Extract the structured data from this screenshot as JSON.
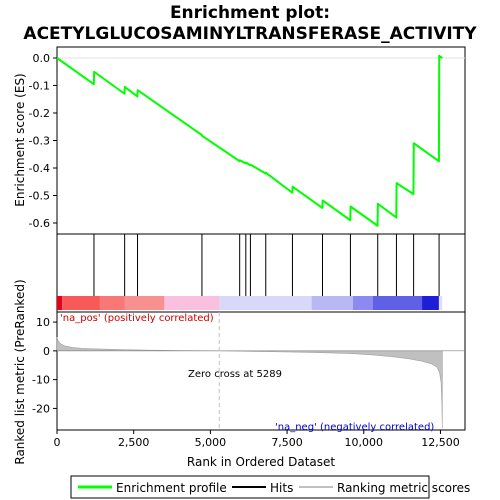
{
  "chart_data": {
    "type": "line",
    "title_line1": "Enrichment plot:",
    "title_line2": "ACETYLGLUCOSAMINYLTRANSFERASE_ACTIVITY",
    "es_panel": {
      "ylabel": "Enrichment score (ES)",
      "ylim": [
        -0.64,
        0.04
      ],
      "yticks": [
        "0.0",
        "-0.1",
        "-0.2",
        "-0.3",
        "-0.4",
        "-0.5",
        "-0.6"
      ],
      "ytick_values": [
        0.0,
        -0.1,
        -0.2,
        -0.3,
        -0.4,
        -0.5,
        -0.6
      ],
      "profile_x": [
        0,
        1200,
        1210,
        2200,
        2210,
        2620,
        2630,
        4720,
        4730,
        5950,
        5960,
        6150,
        6160,
        6300,
        6310,
        6800,
        6810,
        7670,
        7680,
        8650,
        8660,
        9560,
        9570,
        10450,
        10460,
        11060,
        11070,
        11620,
        11630,
        12450,
        12460,
        12560
      ],
      "profile_y": [
        0.0,
        -0.095,
        -0.05,
        -0.13,
        -0.105,
        -0.14,
        -0.117,
        -0.28,
        -0.283,
        -0.375,
        -0.372,
        -0.383,
        -0.38,
        -0.39,
        -0.388,
        -0.42,
        -0.417,
        -0.49,
        -0.468,
        -0.545,
        -0.518,
        -0.59,
        -0.54,
        -0.61,
        -0.53,
        -0.58,
        -0.455,
        -0.495,
        -0.31,
        -0.375,
        0.008,
        0.0
      ]
    },
    "hits_panel": {
      "hits_x": [
        1205,
        2205,
        2625,
        4725,
        5955,
        6155,
        6305,
        6805,
        7675,
        8655,
        9565,
        10455,
        11065,
        11625,
        12455
      ]
    },
    "heat_bar": {
      "segments": [
        {
          "from": 0,
          "to": 170,
          "color": "#e8001a"
        },
        {
          "from": 170,
          "to": 1400,
          "color": "#f85a5a"
        },
        {
          "from": 1400,
          "to": 2200,
          "color": "#f87878"
        },
        {
          "from": 2200,
          "to": 3500,
          "color": "#f89090"
        },
        {
          "from": 3500,
          "to": 5300,
          "color": "#fac0e0"
        },
        {
          "from": 5300,
          "to": 8300,
          "color": "#d8d8fa"
        },
        {
          "from": 8300,
          "to": 9650,
          "color": "#b8b8f5"
        },
        {
          "from": 9650,
          "to": 10300,
          "color": "#8a8af0"
        },
        {
          "from": 10300,
          "to": 11900,
          "color": "#6060e6"
        },
        {
          "from": 11900,
          "to": 12450,
          "color": "#1e1ed6"
        },
        {
          "from": 12450,
          "to": 12560,
          "color": "#e0e0f6"
        }
      ]
    },
    "metric_panel": {
      "ylabel": "Ranked list metric (PreRanked)",
      "ylim": [
        -27.5,
        13.5
      ],
      "yticks": [
        "10",
        "0",
        "-10",
        "-20"
      ],
      "ytick_values": [
        10,
        0,
        -10,
        -20
      ],
      "metric_x": [
        0,
        30,
        100,
        250,
        500,
        800,
        1200,
        2000,
        3000,
        4000,
        5289,
        6500,
        7500,
        8500,
        9500,
        10000,
        10500,
        11000,
        11500,
        11900,
        12200,
        12380,
        12470,
        12520,
        12545,
        12560
      ],
      "metric_y": [
        4.8,
        3.6,
        2.6,
        1.7,
        1.2,
        0.9,
        0.7,
        0.45,
        0.25,
        0.1,
        0.0,
        -0.2,
        -0.4,
        -0.6,
        -0.9,
        -1.2,
        -1.6,
        -2.1,
        -2.8,
        -3.6,
        -4.5,
        -5.6,
        -7.5,
        -11.0,
        -18.0,
        -27.0
      ],
      "zero_cross": 5289,
      "zero_cross_label": "Zero cross at 5289",
      "pos_label": "'na_pos' (positively correlated)",
      "neg_label": "'na_neg' (negatively correlated)"
    },
    "x_axis": {
      "xlabel": "Rank in Ordered Dataset",
      "xlim": [
        0,
        13300
      ],
      "xticks": [
        "0",
        "2,500",
        "5,000",
        "7,500",
        "10,000",
        "12,500"
      ],
      "xtick_values": [
        0,
        2500,
        5000,
        7500,
        10000,
        12500
      ]
    },
    "legend": {
      "items": [
        "Enrichment profile",
        "Hits",
        "Ranking metric scores"
      ],
      "colors": [
        "#00ff00",
        "#000000",
        "#c0c0c0"
      ]
    },
    "colors": {
      "profile": "#00ff00",
      "hit": "#000000",
      "metric_fill": "#c0c0c0",
      "zero_line": "#c0c0c0"
    }
  }
}
